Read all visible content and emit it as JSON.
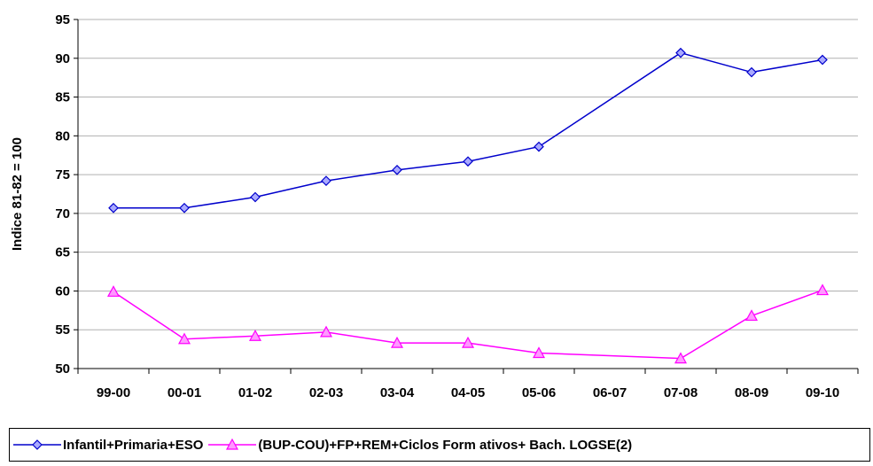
{
  "chart_data": {
    "type": "line",
    "title": "",
    "xlabel": "",
    "ylabel": "Indice 81-82 = 100",
    "categories": [
      "99-00",
      "00-01",
      "01-02",
      "02-03",
      "03-04",
      "04-05",
      "05-06",
      "06-07",
      "07-08",
      "08-09",
      "09-10"
    ],
    "ylim": [
      50,
      95
    ],
    "yticks": [
      50,
      55,
      60,
      65,
      70,
      75,
      80,
      85,
      90,
      95
    ],
    "grid": true,
    "legend_position": "bottom",
    "series": [
      {
        "name": "Infantil+Primaria+ESO",
        "color": "#0000cc",
        "marker": "diamond",
        "values": [
          70.7,
          70.7,
          72.1,
          74.2,
          75.6,
          76.7,
          78.6,
          null,
          90.7,
          88.2,
          89.8
        ]
      },
      {
        "name": "(BUP-COU)+FP+REM+Ciclos Form ativos+ Bach. LOGSE(2)",
        "color": "#ff00ff",
        "marker": "triangle",
        "values": [
          59.9,
          53.8,
          54.2,
          54.7,
          53.3,
          53.3,
          52.0,
          null,
          51.3,
          56.8,
          60.1
        ]
      }
    ]
  }
}
